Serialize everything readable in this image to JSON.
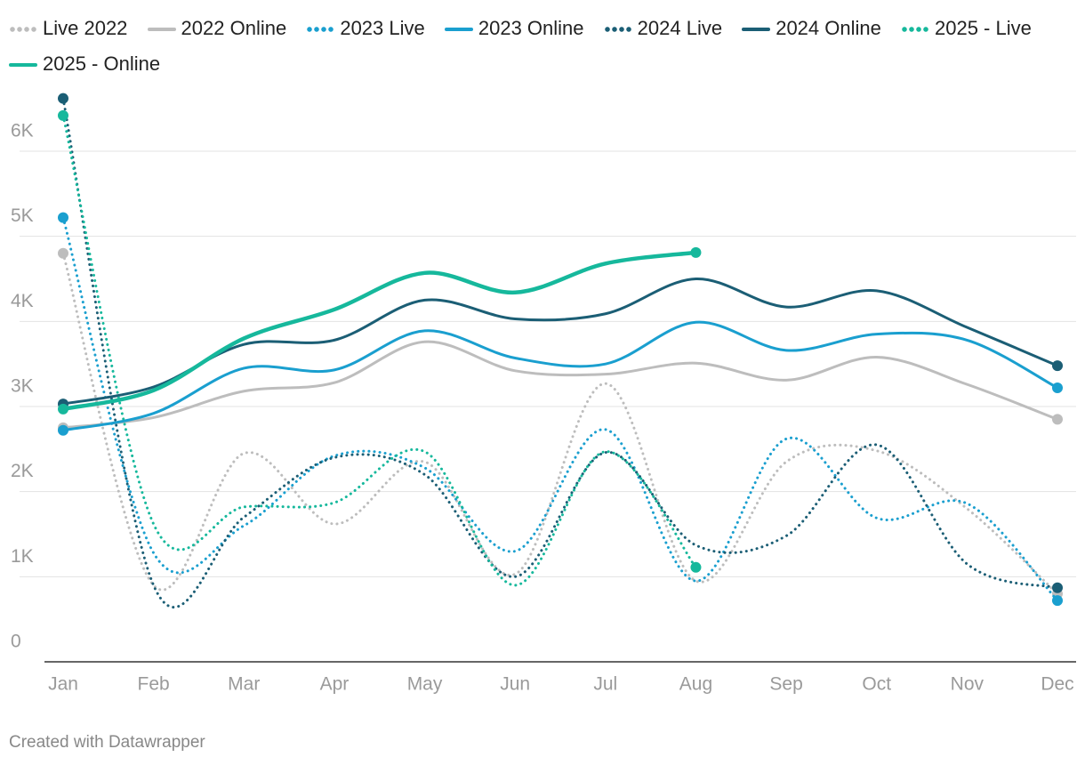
{
  "chart_data": {
    "type": "line",
    "categories": [
      "Jan",
      "Feb",
      "Mar",
      "Apr",
      "May",
      "Jun",
      "Jul",
      "Aug",
      "Sep",
      "Oct",
      "Nov",
      "Dec"
    ],
    "series": [
      {
        "name": "Live 2022",
        "color": "#bdbdbd",
        "style": "dotted",
        "values": [
          4800,
          900,
          2450,
          1620,
          2350,
          1030,
          3270,
          950,
          2350,
          2480,
          1800,
          800
        ]
      },
      {
        "name": "2022 Online",
        "color": "#bdbdbd",
        "style": "solid",
        "values": [
          2750,
          2870,
          3180,
          3280,
          3760,
          3420,
          3380,
          3510,
          3310,
          3580,
          3260,
          2850
        ]
      },
      {
        "name": "2023 Live",
        "color": "#1a9fcf",
        "style": "dotted",
        "values": [
          5220,
          1280,
          1600,
          2420,
          2280,
          1300,
          2730,
          950,
          2620,
          1690,
          1860,
          720
        ]
      },
      {
        "name": "2023 Online",
        "color": "#1a9fcf",
        "style": "solid",
        "values": [
          2720,
          2920,
          3450,
          3430,
          3890,
          3570,
          3500,
          3990,
          3660,
          3850,
          3780,
          3220
        ]
      },
      {
        "name": "2024 Live",
        "color": "#1b5e75",
        "style": "dotted",
        "values": [
          6620,
          900,
          1700,
          2400,
          2200,
          1000,
          2460,
          1370,
          1480,
          2550,
          1150,
          870
        ]
      },
      {
        "name": "2024 Online",
        "color": "#1b5e75",
        "style": "solid",
        "values": [
          3030,
          3230,
          3730,
          3780,
          4250,
          4030,
          4090,
          4500,
          4170,
          4360,
          3930,
          3480
        ]
      },
      {
        "name": "2025 - Live",
        "color": "#16b89c",
        "style": "dotted",
        "values": [
          6420,
          1620,
          1820,
          1870,
          2470,
          900,
          2470,
          1110,
          null,
          null,
          null,
          null
        ]
      },
      {
        "name": "2025 - Online",
        "color": "#16b89c",
        "style": "solid",
        "values": [
          2970,
          3190,
          3800,
          4140,
          4570,
          4340,
          4680,
          4810,
          null,
          null,
          null,
          null
        ]
      }
    ],
    "ylim": [
      0,
      6600
    ],
    "yticks": [
      0,
      {
        "value": 1000,
        "label": "1K"
      },
      {
        "value": 2000,
        "label": "2K"
      },
      {
        "value": 3000,
        "label": "3K"
      },
      {
        "value": 4000,
        "label": "4K"
      },
      {
        "value": 5000,
        "label": "5K"
      },
      {
        "value": 6000,
        "label": "6K"
      }
    ],
    "grid": true,
    "credit": "Created with Datawrapper"
  }
}
